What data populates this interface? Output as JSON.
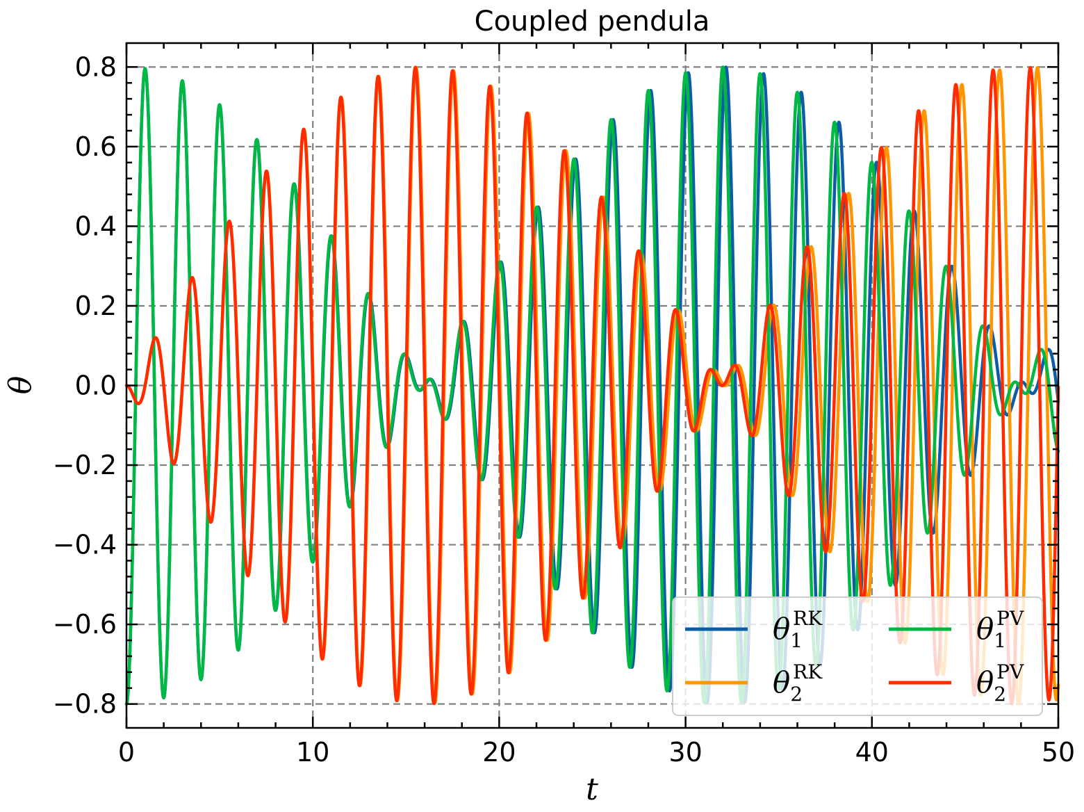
{
  "chart_data": {
    "type": "line",
    "title": "Coupled pendula",
    "xlabel": "t",
    "ylabel": "θ",
    "xlim": [
      0,
      50
    ],
    "ylim": [
      -0.86,
      0.86
    ],
    "xticks": [
      0,
      10,
      20,
      30,
      40,
      50
    ],
    "xtick_labels": [
      "0",
      "10",
      "20",
      "30",
      "40",
      "50"
    ],
    "yticks": [
      -0.8,
      -0.6,
      -0.4,
      -0.2,
      0.0,
      0.2,
      0.4,
      0.6,
      0.8
    ],
    "ytick_labels": [
      "−0.8",
      "−0.6",
      "−0.4",
      "−0.2",
      "0.0",
      "0.2",
      "0.4",
      "0.6",
      "0.8"
    ],
    "grid": true,
    "legend_position": "lower-right",
    "legend_columns": 2,
    "model": {
      "description_of_values": "theta values sampled along t",
      "omega_fast": 3.1415,
      "omega_slow": 0.0984,
      "amplitude": 0.8
    },
    "series": [
      {
        "name_base": "θ",
        "sub": "1",
        "sup": "RK",
        "color": "#0C5DA5",
        "phase_shift": 0.008
      },
      {
        "name_base": "θ",
        "sub": "2",
        "sup": "RK",
        "color": "#FF9500",
        "phase_shift": 0.008
      },
      {
        "name_base": "θ",
        "sub": "1",
        "sup": "PV",
        "color": "#00B945",
        "phase_shift": 0.0
      },
      {
        "name_base": "θ",
        "sub": "2",
        "sup": "PV",
        "color": "#FF2C00",
        "phase_shift": 0.0
      }
    ]
  }
}
